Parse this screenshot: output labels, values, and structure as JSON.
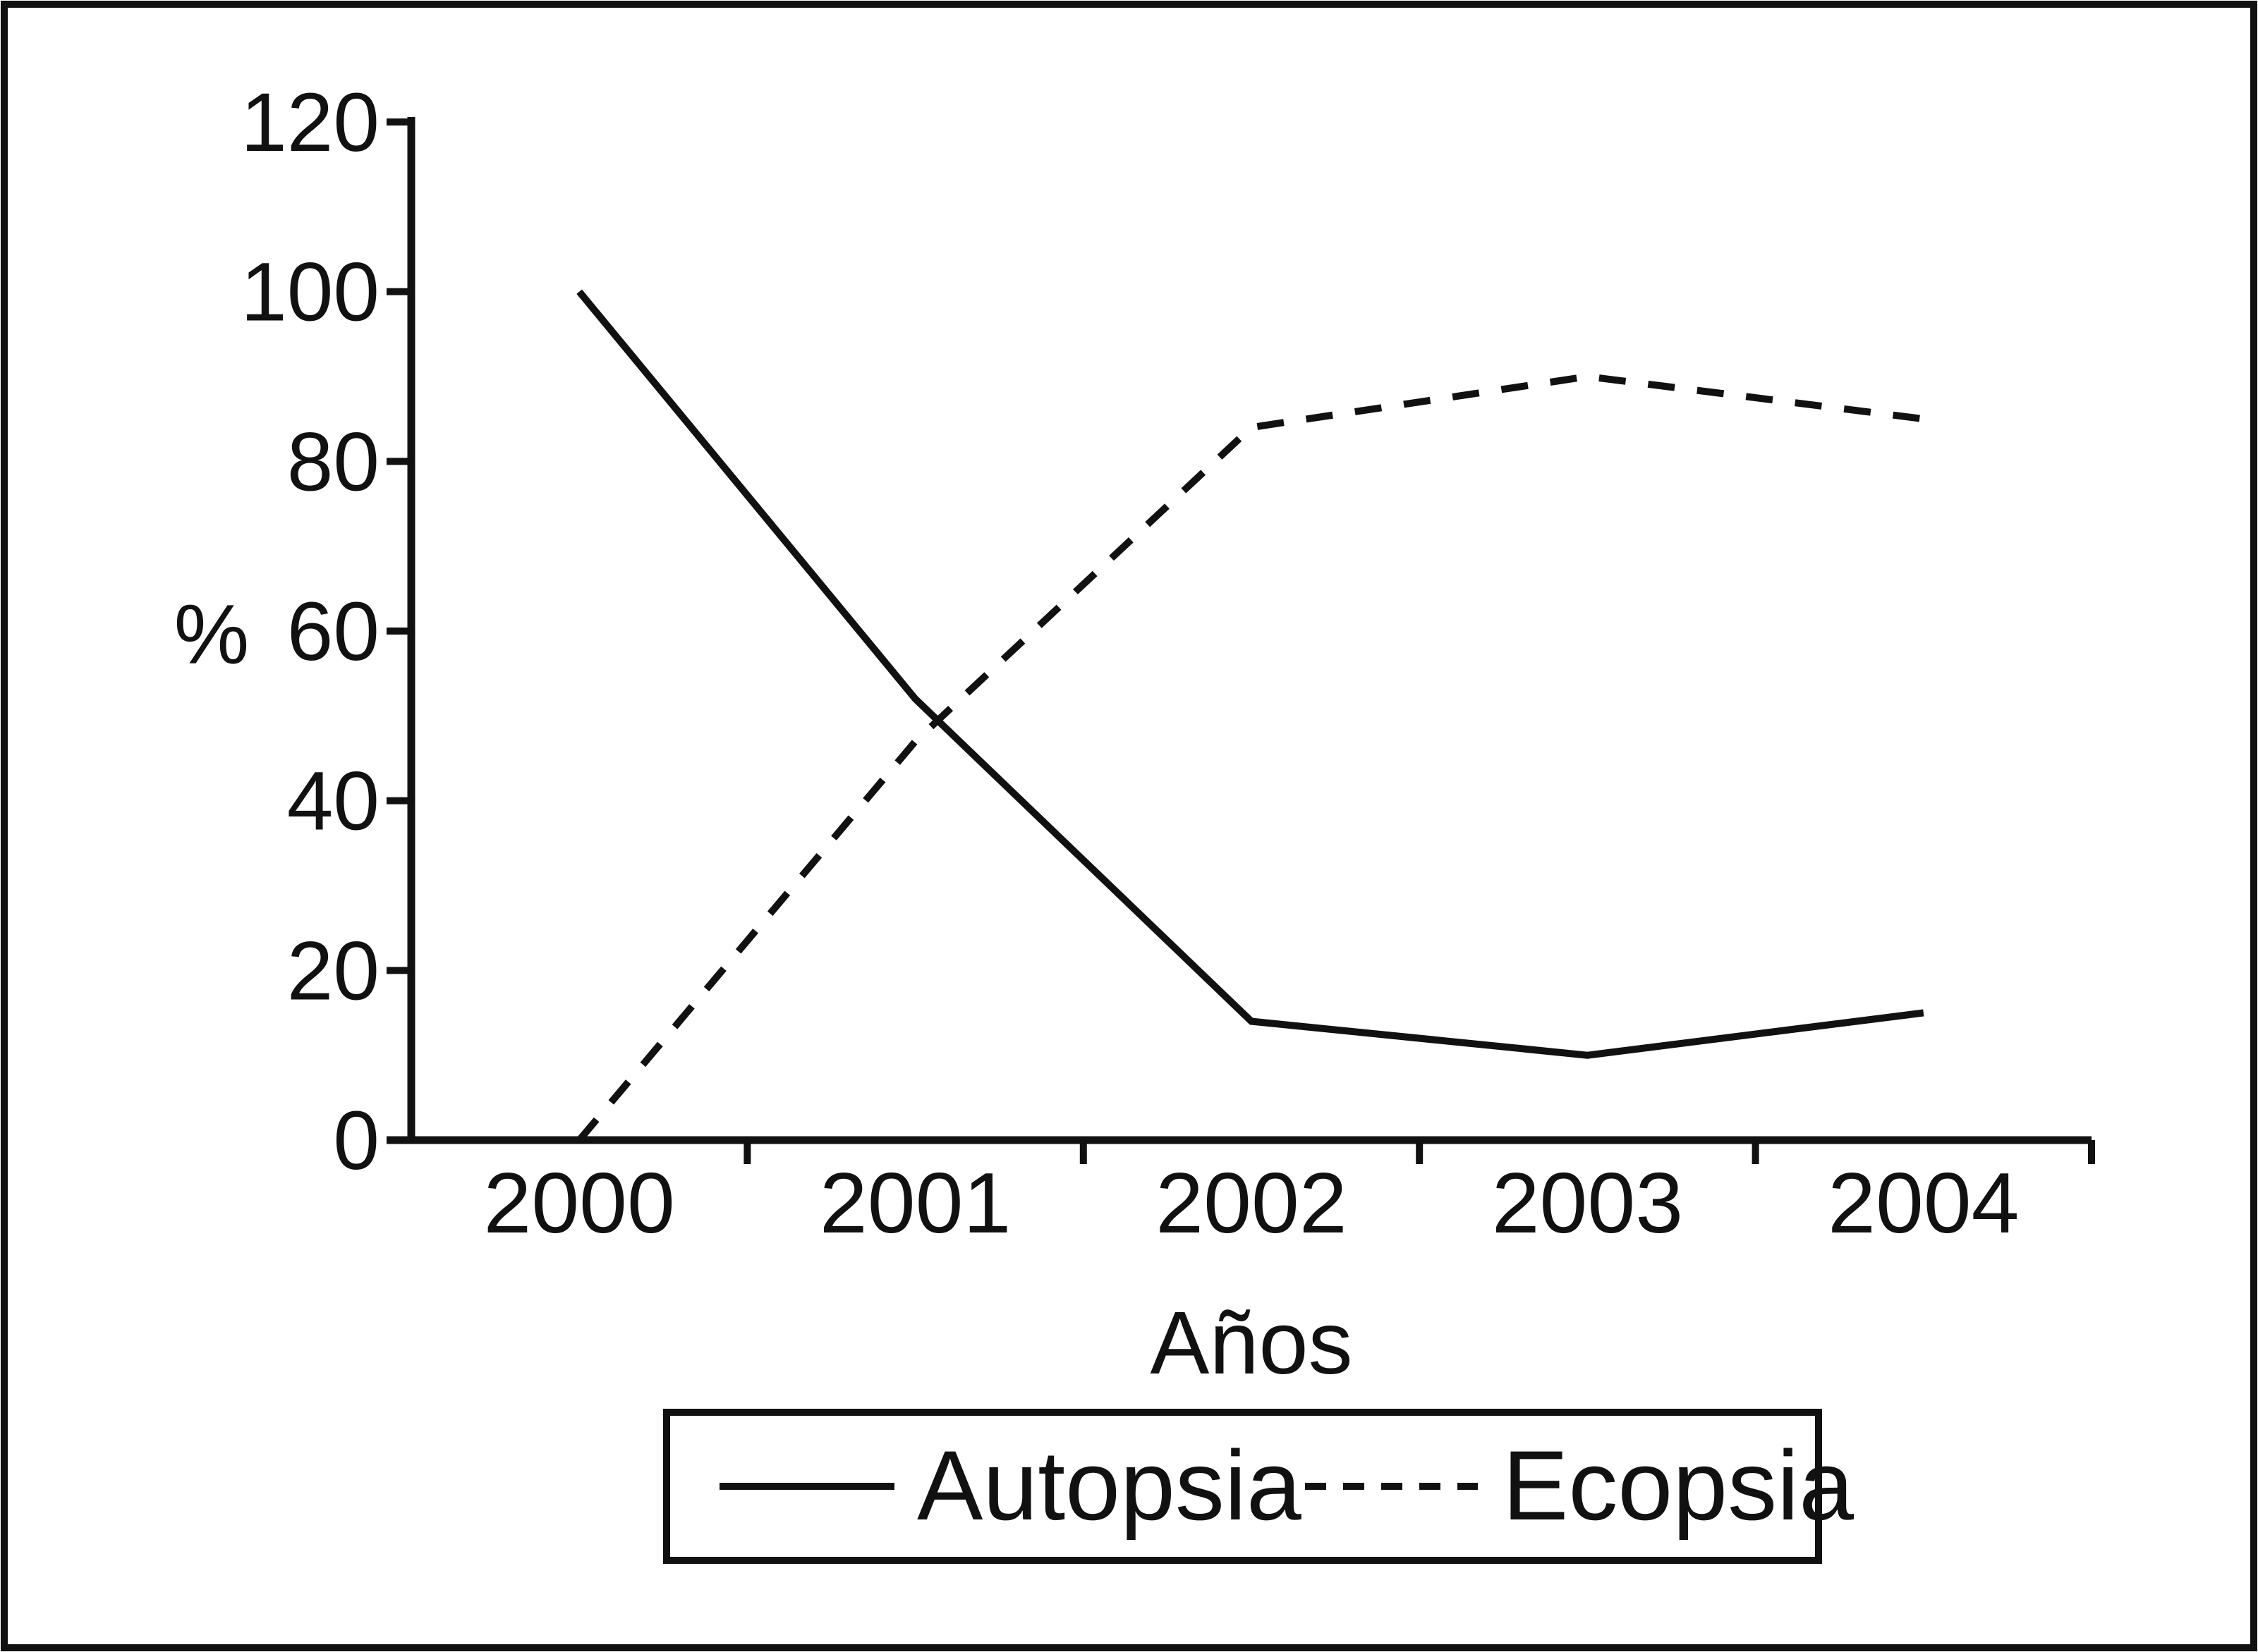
{
  "figure": {
    "background": "#ffffff",
    "ink_color": "#111111",
    "frame": "black rectangular border around entire scanned figure"
  },
  "chart_data": {
    "type": "line",
    "title": "",
    "xlabel": "Años",
    "ylabel": "%",
    "categories": [
      "2000",
      "2001",
      "2002",
      "2003",
      "2004"
    ],
    "series": [
      {
        "name": "Autopsia",
        "style": "solid",
        "color": "#111111",
        "values": [
          100,
          52,
          14,
          10,
          15
        ]
      },
      {
        "name": "Ecopsia",
        "style": "dashed",
        "color": "#111111",
        "values": [
          0,
          47,
          84,
          90,
          85
        ]
      }
    ],
    "ylim": [
      0,
      120
    ],
    "yticks": [
      0,
      20,
      40,
      60,
      80,
      100,
      120
    ],
    "grid": false,
    "legend_position": "bottom-center-boxed",
    "notes": "x tick marks sit on category boundaries; year labels centered within intervals"
  },
  "legend": {
    "items": [
      {
        "label": "Autopsia",
        "swatch": "solid-line"
      },
      {
        "label": "Ecopsia",
        "swatch": "dashed-line"
      }
    ]
  }
}
